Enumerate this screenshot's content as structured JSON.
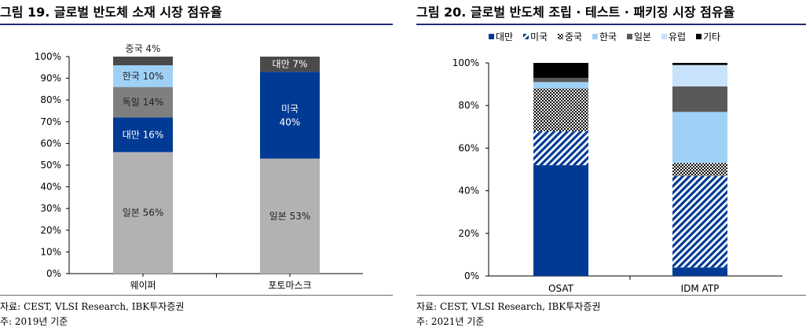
{
  "chart_data": [
    {
      "type": "bar",
      "stacked": true,
      "title": "그림 19. 글로벌 반도체 소재 시장 점유율",
      "categories": [
        "웨이퍼",
        "포토마스크"
      ],
      "ylim": [
        0,
        100
      ],
      "yticks": [
        "0%",
        "10%",
        "20%",
        "30%",
        "40%",
        "50%",
        "60%",
        "70%",
        "80%",
        "90%",
        "100%"
      ],
      "series": [
        {
          "key": "japan",
          "values": [
            56,
            53
          ],
          "labels": [
            "일본 56%",
            "일본 53%"
          ],
          "color": "#b2b2b2",
          "label_color": "#222222"
        },
        {
          "key": "taiwan",
          "values": [
            16,
            0
          ],
          "labels": [
            "대만 16%",
            ""
          ],
          "color": "#003a94",
          "label_color": "#ffffff"
        },
        {
          "key": "usa",
          "values": [
            0,
            40
          ],
          "labels": [
            "",
            "미국 40%"
          ],
          "color": "#003a94",
          "label_color": "#ffffff"
        },
        {
          "key": "germany",
          "values": [
            14,
            0
          ],
          "labels": [
            "독일 14%",
            ""
          ],
          "color": "#7f7f7f",
          "label_color": "#222222"
        },
        {
          "key": "korea",
          "values": [
            10,
            0
          ],
          "labels": [
            "한국 10%",
            ""
          ],
          "color": "#9fd1f7",
          "label_color": "#222222"
        },
        {
          "key": "china",
          "values": [
            4,
            0
          ],
          "labels": [
            "중국 4%",
            ""
          ],
          "color": "#4a4a4a",
          "label_color": "#222222"
        },
        {
          "key": "taiwan_top",
          "values": [
            0,
            7
          ],
          "labels": [
            "",
            "대만 7%"
          ],
          "color": "#4a4a4a",
          "label_color": "#ffffff"
        }
      ],
      "source": "자료: CEST, VLSI Research, IBK투자증권",
      "footnote": "주: 2019년 기준"
    },
    {
      "type": "bar",
      "stacked": true,
      "title": "그림 20. 글로벌 반도체 조립 · 테스트 · 패키징 시장 점유율",
      "categories": [
        "OSAT",
        "IDM ATP"
      ],
      "ylim": [
        0,
        100
      ],
      "yticks": [
        "0%",
        "20%",
        "40%",
        "60%",
        "80%",
        "100%"
      ],
      "series": [
        {
          "name": "대만",
          "values": [
            52,
            4
          ],
          "color": "#003a94",
          "pattern": "solid"
        },
        {
          "name": "미국",
          "values": [
            16,
            43
          ],
          "color": "#003a94",
          "pattern": "diag"
        },
        {
          "name": "중국",
          "values": [
            20,
            6
          ],
          "color": "#000000",
          "pattern": "dots"
        },
        {
          "name": "한국",
          "values": [
            3,
            24
          ],
          "color": "#9fd1f7",
          "pattern": "solid"
        },
        {
          "name": "일본",
          "values": [
            2,
            12
          ],
          "color": "#595959",
          "pattern": "solid"
        },
        {
          "name": "유럽",
          "values": [
            0,
            10
          ],
          "color": "#c9e2fb",
          "pattern": "solid"
        },
        {
          "name": "기타",
          "values": [
            7,
            1
          ],
          "color": "#000000",
          "pattern": "solid"
        }
      ],
      "legend_position": "top",
      "source": "자료: CEST, VLSI Research, IBK투자증권",
      "footnote": "주: 2021년 기준"
    }
  ]
}
